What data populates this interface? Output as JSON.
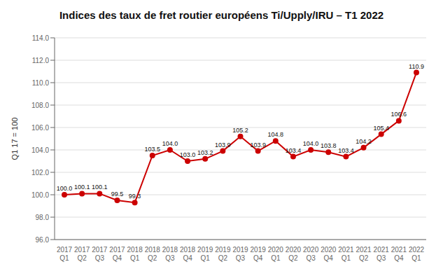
{
  "chart_data": {
    "type": "line",
    "title": "Indices des taux de fret routier européens Ti/Upply/IRU – T1 2022",
    "y_label": "Q1 17 = 100",
    "categories": [
      "2017\nQ1",
      "2017\nQ2",
      "2017\nQ3",
      "2017\nQ4",
      "2018\nQ1",
      "2018\nQ2",
      "2018\nQ3",
      "2018\nQ4",
      "2019\nQ1",
      "2019\nQ2",
      "2019\nQ3",
      "2019\nQ4",
      "2020\nQ1",
      "2020\nQ2",
      "2020\nQ3",
      "2020\nQ4",
      "2021\nQ1",
      "2021\nQ2",
      "2021\nQ3",
      "2021\nQ4",
      "2022\nQ1"
    ],
    "values": [
      100.0,
      100.1,
      100.1,
      99.5,
      99.3,
      103.5,
      104.0,
      103.0,
      103.2,
      103.9,
      105.2,
      103.9,
      104.8,
      103.4,
      104.0,
      103.8,
      103.4,
      104.2,
      105.4,
      106.6,
      110.9
    ],
    "value_labels": [
      "100.0",
      "100.1",
      "100.1",
      "99.5",
      "99.3",
      "103.5",
      "104.0",
      "103.0",
      "103.2",
      "103.9",
      "105.2",
      "103.9",
      "104.8",
      "103.4",
      "104.0",
      "103.8",
      "103.4",
      "104.2",
      "105.4",
      "106.6",
      "110.9"
    ],
    "data_labels": true,
    "color": "#cc0000",
    "marker": "circle",
    "ylim": [
      96,
      114
    ],
    "yticks": [
      {
        "value": 96,
        "label": "96.0"
      },
      {
        "value": 98,
        "label": "98.0"
      },
      {
        "value": 100,
        "label": "100.0"
      },
      {
        "value": 102,
        "label": "102.0"
      },
      {
        "value": 104,
        "label": "104.0"
      },
      {
        "value": 106,
        "label": "106.0"
      },
      {
        "value": 108,
        "label": "108.0"
      },
      {
        "value": 110,
        "label": "110.0"
      },
      {
        "value": 112,
        "label": "112.0"
      },
      {
        "value": 114,
        "label": "114.0"
      }
    ],
    "grid": true
  }
}
